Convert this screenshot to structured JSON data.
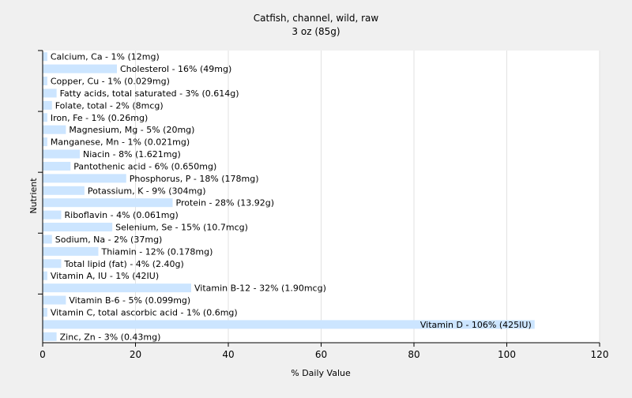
{
  "chart_data": {
    "type": "bar",
    "orientation": "horizontal",
    "title": "Catfish, channel, wild, raw",
    "subtitle": "3 oz (85g)",
    "xlabel": "% Daily Value",
    "ylabel": "Nutrient",
    "xlim": [
      0,
      120
    ],
    "xticks": [
      0,
      20,
      40,
      60,
      80,
      100,
      120
    ],
    "grid": true,
    "bar_color": "#cce5ff",
    "background": "#f0f0f0",
    "plot_background": "#ffffff",
    "grid_color": "#e2e2e2",
    "categories": [
      "Calcium, Ca",
      "Cholesterol",
      "Copper, Cu",
      "Fatty acids, total saturated",
      "Folate, total",
      "Iron, Fe",
      "Magnesium, Mg",
      "Manganese, Mn",
      "Niacin",
      "Pantothenic acid",
      "Phosphorus, P",
      "Potassium, K",
      "Protein",
      "Riboflavin",
      "Selenium, Se",
      "Sodium, Na",
      "Thiamin",
      "Total lipid (fat)",
      "Vitamin A, IU",
      "Vitamin B-12",
      "Vitamin B-6",
      "Vitamin C, total ascorbic acid",
      "Vitamin D",
      "Zinc, Zn"
    ],
    "values": [
      1,
      16,
      1,
      3,
      2,
      1,
      5,
      1,
      8,
      6,
      18,
      9,
      28,
      4,
      15,
      2,
      12,
      4,
      1,
      32,
      5,
      1,
      106,
      3
    ],
    "labels": [
      "Calcium, Ca - 1% (12mg)",
      "Cholesterol - 16% (49mg)",
      "Copper, Cu - 1% (0.029mg)",
      "Fatty acids, total saturated - 3% (0.614g)",
      "Folate, total - 2% (8mcg)",
      "Iron, Fe - 1% (0.26mg)",
      "Magnesium, Mg - 5% (20mg)",
      "Manganese, Mn - 1% (0.021mg)",
      "Niacin - 8% (1.621mg)",
      "Pantothenic acid - 6% (0.650mg)",
      "Phosphorus, P - 18% (178mg)",
      "Potassium, K - 9% (304mg)",
      "Protein - 28% (13.92g)",
      "Riboflavin - 4% (0.061mg)",
      "Selenium, Se - 15% (10.7mcg)",
      "Sodium, Na - 2% (37mg)",
      "Thiamin - 12% (0.178mg)",
      "Total lipid (fat) - 4% (2.40g)",
      "Vitamin A, IU - 1% (42IU)",
      "Vitamin B-12 - 32% (1.90mcg)",
      "Vitamin B-6 - 5% (0.099mg)",
      "Vitamin C, total ascorbic acid - 1% (0.6mg)",
      "Vitamin D - 106% (425IU)",
      "Zinc, Zn - 3% (0.43mg)"
    ]
  }
}
